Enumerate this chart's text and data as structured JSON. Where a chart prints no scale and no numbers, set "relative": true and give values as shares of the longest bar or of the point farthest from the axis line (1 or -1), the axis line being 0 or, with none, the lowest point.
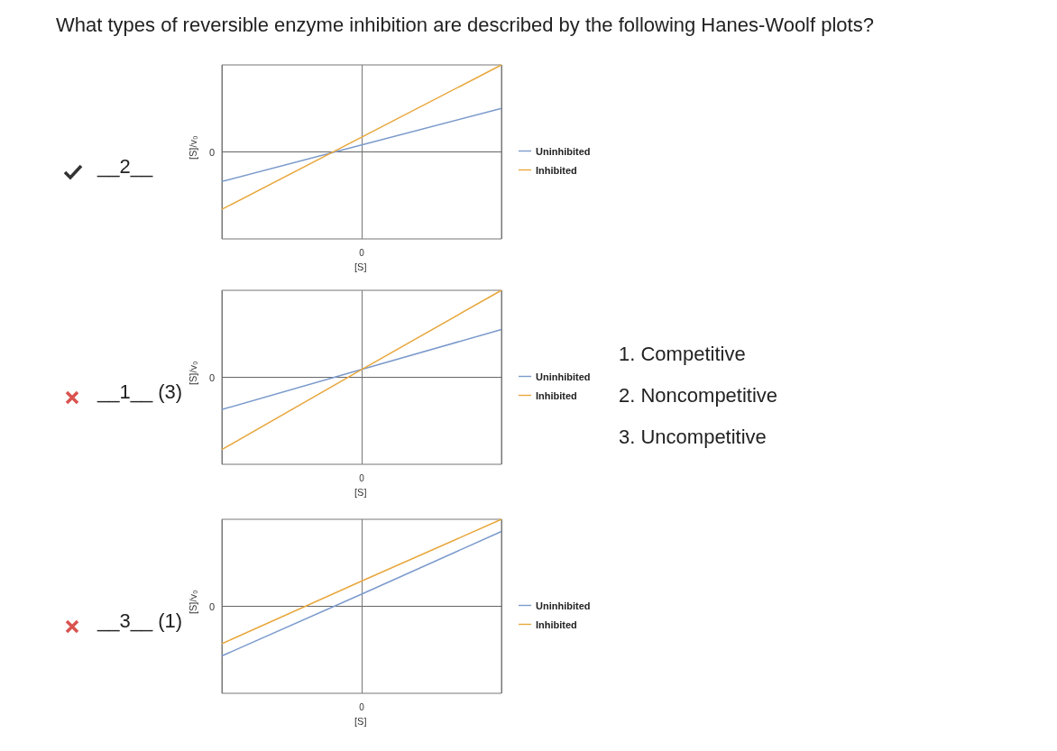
{
  "chart_data": [
    {
      "type": "other",
      "title": "What types of reversible enzyme inhibition are described by the following Hanes-Woolf plots?",
      "annotations": [
        "1. Competitive",
        "2. Noncompetitive",
        "3. Uncompetitive"
      ]
    },
    {
      "type": "line",
      "relative": true,
      "categories": [
        null,
        null,
        null
      ],
      "xlabel": "[S]",
      "ylabel": "[S]/v₀",
      "legend": "right",
      "marker": "none",
      "annotations": [
        "__2__",
        "0"
      ],
      "ref_lines": [
        {
          "axis": "y",
          "value": 0,
          "label": "0"
        }
      ],
      "series": [
        {
          "name": "Uninhibited",
          "color": "#7b9acc",
          "values": [
            -0.34,
            0.08,
            0.5
          ]
        },
        {
          "name": "Inhibited",
          "color": "#e8a73c",
          "values": [
            -0.66,
            0.17,
            1
          ]
        }
      ]
    },
    {
      "type": "line",
      "relative": true,
      "categories": [
        null,
        null,
        null
      ],
      "xlabel": "[S]",
      "ylabel": "[S]/v₀",
      "legend": "right",
      "marker": "none",
      "annotations": [
        "__1__ (3)",
        "0"
      ],
      "ref_lines": [
        {
          "axis": "y",
          "value": 0,
          "label": "0"
        }
      ],
      "series": [
        {
          "name": "Uninhibited",
          "color": "#7b9acc",
          "values": [
            -0.37,
            0.09,
            0.55
          ]
        },
        {
          "name": "Inhibited",
          "color": "#e8a73c",
          "values": [
            -0.83,
            0.09,
            1
          ]
        }
      ]
    },
    {
      "type": "line",
      "relative": true,
      "categories": [
        null,
        null,
        null
      ],
      "xlabel": "[S]",
      "ylabel": "[S]/v₀",
      "legend": "right",
      "marker": "none",
      "annotations": [
        "__3__ (1)",
        "0"
      ],
      "ref_lines": [
        {
          "axis": "y",
          "value": 0,
          "label": "0"
        }
      ],
      "series": [
        {
          "name": "Uninhibited",
          "color": "#7b9acc",
          "values": [
            -0.57,
            0.14,
            0.86
          ]
        },
        {
          "name": "Inhibited",
          "color": "#e8a73c",
          "values": [
            -0.43,
            0.29,
            1
          ]
        }
      ]
    }
  ]
}
